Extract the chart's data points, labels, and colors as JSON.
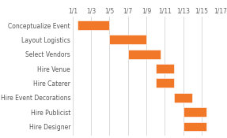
{
  "tasks": [
    "Conceptualize Event",
    "Layout Logistics",
    "Select Vendors",
    "Hire Venue",
    "Hire Caterer",
    "Hire Event Decorations",
    "Hire Publicist",
    "Hire Designer"
  ],
  "starts": [
    1.5,
    5,
    7,
    10,
    10,
    12,
    13,
    13
  ],
  "durations": [
    3.5,
    4,
    3.5,
    2,
    2,
    2,
    2.5,
    2.5
  ],
  "bar_color": "#F07828",
  "background_color": "#ffffff",
  "x_ticks": [
    1,
    3,
    5,
    7,
    9,
    11,
    13,
    15,
    17
  ],
  "x_tick_labels": [
    "1/1",
    "1/3",
    "1/5",
    "1/7",
    "1/9",
    "1/11",
    "1/13",
    "1/15",
    "1/17"
  ],
  "xlim": [
    1,
    17
  ],
  "grid_color": "#cccccc",
  "tick_fontsize": 5.5,
  "label_fontsize": 5.5,
  "bar_height": 0.65
}
